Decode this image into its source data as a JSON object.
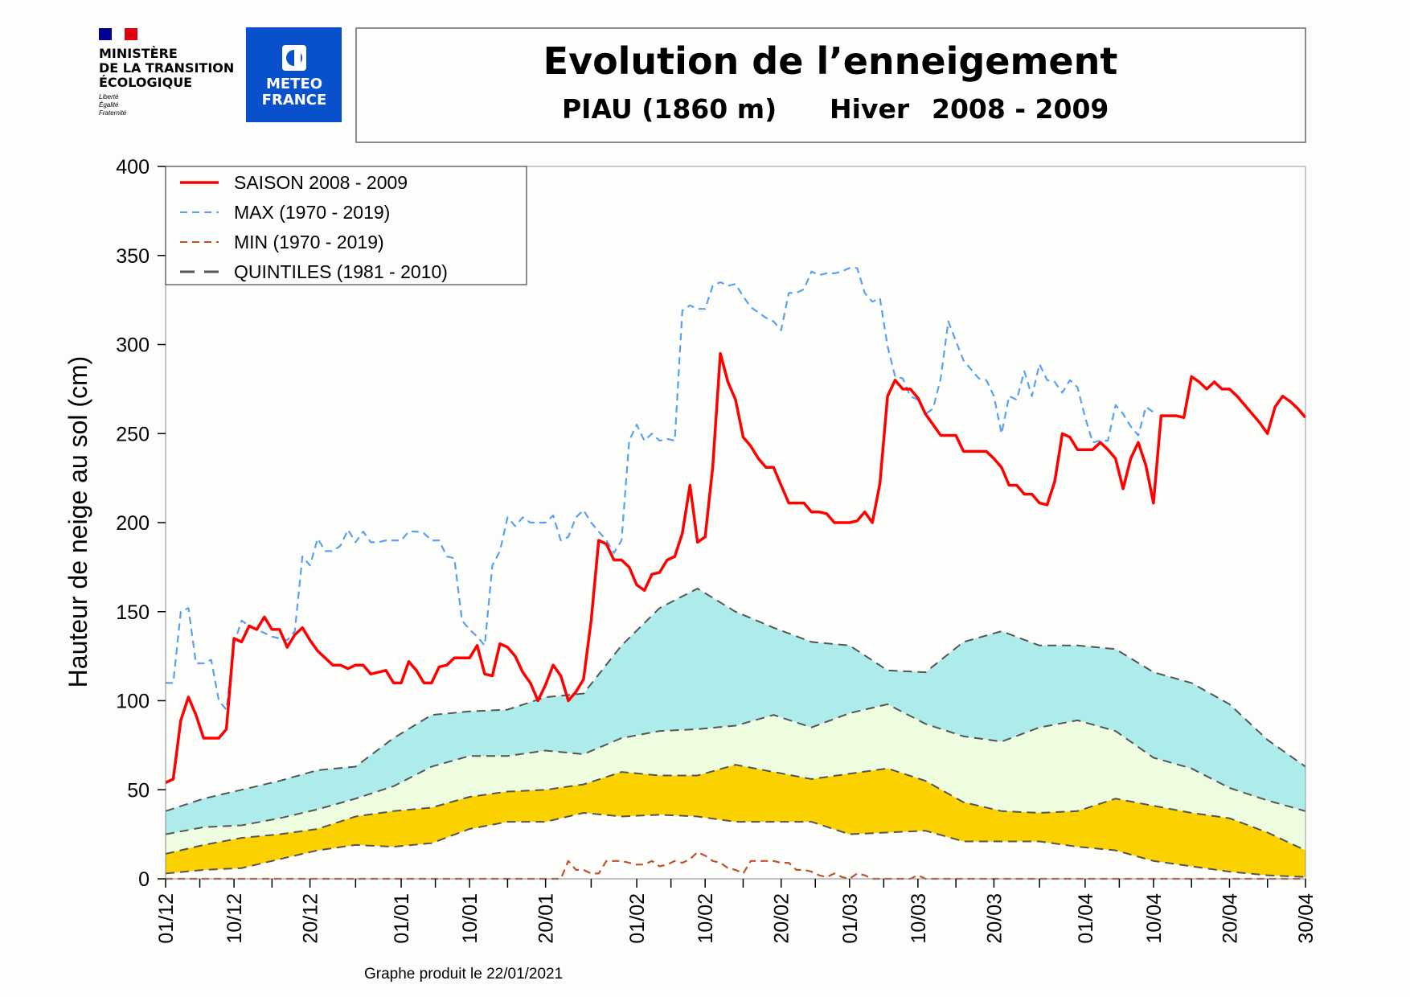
{
  "logos": {
    "ministry": {
      "line1": "MINISTÈRE",
      "line2": "DE LA TRANSITION",
      "line3": "ÉCOLOGIQUE",
      "motto1": "Liberté",
      "motto2": "Égalité",
      "motto3": "Fraternité"
    },
    "meteo": {
      "line1": "METEO",
      "line2": "FRANCE",
      "color": "#0950cc"
    }
  },
  "header": {
    "title": "Evolution de l’enneigement",
    "station": "PIAU (1860 m)",
    "season_label": "Hiver",
    "season": "2008 - 2009"
  },
  "footer": {
    "produced": "Graphe produit le 22/01/2021"
  },
  "chart_data": {
    "type": "line",
    "ylabel": "Hauteur de neige au sol (cm)",
    "xlabel": "",
    "ylim": [
      0,
      400
    ],
    "yticks": [
      "0",
      "50",
      "100",
      "150",
      "200",
      "250",
      "300",
      "350",
      "400"
    ],
    "xlim": [
      "01/12",
      "30/04"
    ],
    "xticks": [
      "01/12",
      "10/12",
      "20/12",
      "01/01",
      "10/01",
      "20/01",
      "01/02",
      "10/02",
      "20/02",
      "01/03",
      "10/03",
      "20/03",
      "01/04",
      "10/04",
      "20/04",
      "30/04"
    ],
    "grid": false,
    "legend_position": "top-left",
    "legend": [
      {
        "label": "SAISON 2008 - 2009",
        "color": "#ff0000",
        "style": "solid"
      },
      {
        "label": "MAX (1970 - 2019)",
        "color": "#5aa0f0",
        "style": "dashed"
      },
      {
        "label": "MIN (1970 - 2019)",
        "color": "#c0502a",
        "style": "dashed"
      },
      {
        "label": "QUINTILES (1981 - 2010)",
        "color": "#555555",
        "style": "long-dashed"
      }
    ],
    "series": [
      {
        "name": "SAISON 2008 - 2009",
        "x_start": "01/12",
        "x_interval": "daily",
        "color": "#ff0000",
        "values": [
          54,
          56,
          89,
          102,
          92,
          79,
          79,
          79,
          84,
          135,
          133,
          142,
          140,
          147,
          140,
          140,
          130,
          137,
          141,
          134,
          128,
          124,
          120,
          120,
          118,
          120,
          120,
          115,
          116,
          117,
          110,
          110,
          122,
          117,
          110,
          110,
          119,
          120,
          124,
          124,
          124,
          131,
          115,
          114,
          132,
          130,
          125,
          116,
          110,
          100,
          109,
          120,
          114,
          100,
          105,
          112,
          145,
          190,
          188,
          179,
          179,
          175,
          165,
          162,
          171,
          172,
          179,
          181,
          194,
          221,
          189,
          192,
          231,
          295,
          279,
          269,
          248,
          243,
          236,
          231,
          231,
          221,
          211,
          211,
          211,
          206,
          206,
          205,
          200,
          200,
          200,
          201,
          206,
          200,
          222,
          271,
          280,
          275,
          275,
          270,
          261,
          255,
          249,
          249,
          249,
          240,
          240,
          240,
          240,
          236,
          231,
          221,
          221,
          216,
          216,
          211,
          210,
          223,
          250,
          248,
          241,
          241,
          241,
          245,
          241,
          236,
          219,
          236,
          245,
          232,
          211,
          260,
          260,
          260,
          259,
          282,
          279,
          275,
          279,
          275,
          275,
          271,
          266,
          261,
          256,
          250,
          265,
          271,
          268,
          264,
          259
        ]
      },
      {
        "name": "MAX (1970 - 2019)",
        "x_start": "01/12",
        "x_interval": "daily",
        "color": "#5aa0f0",
        "values": [
          110,
          110,
          150,
          152,
          121,
          121,
          123,
          100,
          95,
          132,
          145,
          142,
          140,
          138,
          136,
          135,
          134,
          139,
          181,
          176,
          191,
          184,
          184,
          187,
          196,
          189,
          195,
          189,
          189,
          190,
          190,
          190,
          195,
          195,
          194,
          190,
          190,
          181,
          180,
          145,
          140,
          136,
          131,
          176,
          184,
          203,
          198,
          203,
          200,
          200,
          200,
          204,
          190,
          192,
          203,
          207,
          200,
          195,
          190,
          183,
          190,
          246,
          255,
          246,
          250,
          246,
          247,
          246,
          319,
          322,
          320,
          320,
          333,
          335,
          333,
          334,
          327,
          321,
          318,
          315,
          313,
          308,
          329,
          329,
          331,
          341,
          339,
          340,
          340,
          341,
          343,
          343,
          329,
          324,
          326,
          299,
          282,
          281,
          271,
          269,
          261,
          264,
          281,
          313,
          302,
          291,
          286,
          281,
          280,
          271,
          250,
          271,
          269,
          285,
          271,
          289,
          280,
          279,
          273,
          280,
          276,
          259,
          245,
          246,
          246,
          266,
          261,
          254,
          249,
          265,
          262
        ]
      },
      {
        "name": "MIN (1970 - 2019)",
        "x_start": "01/12",
        "x_interval": "daily",
        "color": "#c0502a",
        "values": [
          0,
          0,
          0,
          0,
          0,
          0,
          0,
          0,
          0,
          0,
          0,
          0,
          0,
          0,
          0,
          0,
          0,
          0,
          0,
          0,
          0,
          0,
          0,
          0,
          0,
          0,
          0,
          0,
          0,
          0,
          0,
          0,
          0,
          0,
          0,
          0,
          0,
          0,
          0,
          0,
          0,
          0,
          0,
          0,
          0,
          0,
          0,
          0,
          0,
          0,
          0,
          0,
          0,
          10,
          5,
          5,
          3,
          3,
          10,
          10,
          10,
          9,
          8,
          8,
          10,
          7,
          8,
          10,
          9,
          11,
          15,
          13,
          10,
          9,
          6,
          5,
          3,
          10,
          10,
          10,
          10,
          9,
          9,
          5,
          5,
          4,
          2,
          1,
          3,
          1,
          0,
          3,
          2,
          0,
          0,
          0,
          0,
          0,
          0,
          2,
          0,
          0,
          0,
          0,
          0,
          0,
          0,
          0,
          0,
          0,
          0,
          0,
          0,
          0,
          0,
          0,
          0,
          0,
          0,
          0,
          0,
          0,
          0,
          0,
          0,
          0,
          0,
          0,
          0,
          0,
          0,
          0,
          0,
          0,
          0,
          0,
          0,
          0,
          0,
          0,
          0,
          0,
          0,
          0,
          0,
          0,
          0,
          0,
          0,
          0,
          0
        ]
      }
    ],
    "quintiles": {
      "x": [
        "01/12",
        "06/12",
        "11/12",
        "16/12",
        "21/12",
        "26/12",
        "31/12",
        "05/01",
        "10/01",
        "15/01",
        "20/01",
        "25/01",
        "30/01",
        "04/02",
        "09/02",
        "14/02",
        "19/02",
        "24/02",
        "01/03",
        "06/03",
        "11/03",
        "16/03",
        "21/03",
        "26/03",
        "31/03",
        "05/04",
        "10/04",
        "15/04",
        "20/04",
        "25/04",
        "30/04"
      ],
      "q1": [
        3,
        5,
        6,
        11,
        16,
        19,
        18,
        20,
        28,
        32,
        32,
        37,
        35,
        36,
        35,
        32,
        32,
        32,
        25,
        26,
        27,
        21,
        21,
        21,
        18,
        16,
        10,
        7,
        4,
        2,
        1
      ],
      "q2": [
        14,
        19,
        23,
        25,
        28,
        35,
        38,
        40,
        46,
        49,
        50,
        53,
        60,
        58,
        58,
        64,
        60,
        56,
        59,
        62,
        55,
        43,
        38,
        37,
        38,
        45,
        41,
        37,
        34,
        26,
        16
      ],
      "q3": [
        25,
        29,
        30,
        34,
        39,
        45,
        52,
        63,
        69,
        69,
        72,
        70,
        79,
        83,
        84,
        86,
        92,
        85,
        93,
        98,
        87,
        80,
        77,
        85,
        89,
        83,
        68,
        62,
        51,
        44,
        38
      ],
      "q4": [
        38,
        45,
        50,
        55,
        61,
        63,
        79,
        92,
        94,
        95,
        102,
        104,
        131,
        152,
        163,
        150,
        141,
        133,
        131,
        117,
        116,
        133,
        139,
        131,
        131,
        129,
        116,
        110,
        98,
        78,
        63
      ],
      "band_colors": {
        "q1_q2": "#fbd100",
        "q2_q3": "#eefcdf",
        "q3_q4": "#aeeceb"
      }
    }
  }
}
